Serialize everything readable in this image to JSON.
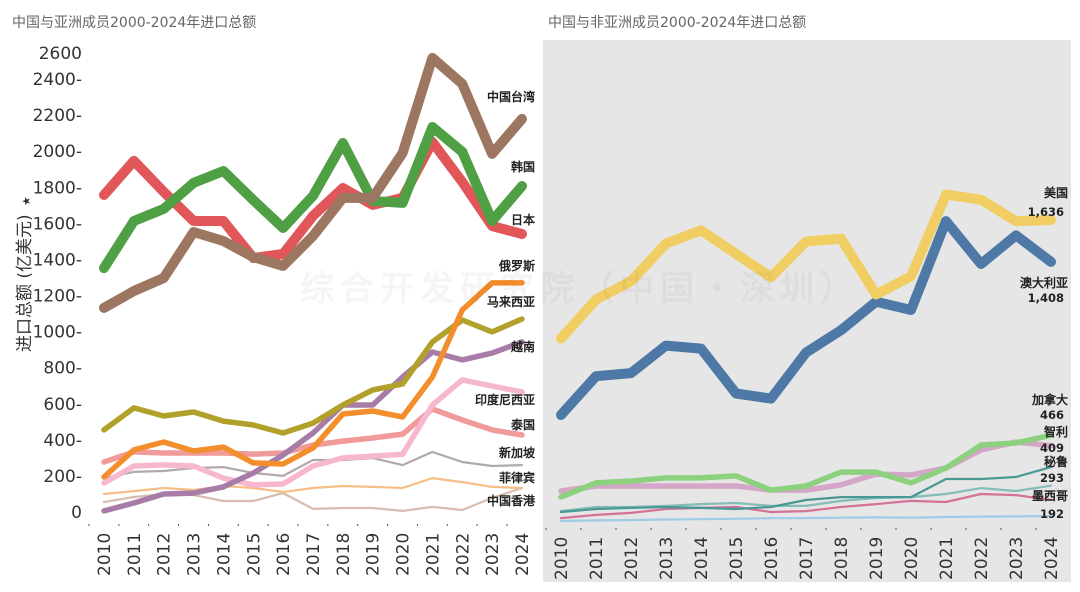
{
  "chart_data": [
    {
      "type": "line",
      "title": "中国与亚洲成员2000-2024年进口总额",
      "xlabel": "",
      "ylabel": "进口总额 (亿美元)",
      "ylabel_marker": "★",
      "ylim": [
        0,
        2600
      ],
      "yticks": [
        "0",
        "200",
        "400",
        "600",
        "800",
        "1000",
        "1200",
        "1400",
        "1600",
        "1800",
        "2000",
        "2200",
        "2400",
        "2600"
      ],
      "yticks_values": [
        0,
        200,
        400,
        600,
        800,
        1000,
        1200,
        1400,
        1600,
        1800,
        2000,
        2200,
        2400,
        2600
      ],
      "x": [
        "2010",
        "2011",
        "2012",
        "2013",
        "2014",
        "2015",
        "2016",
        "2017",
        "2018",
        "2019",
        "2020",
        "2021",
        "2022",
        "2023",
        "2024"
      ],
      "grid": false,
      "series": [
        {
          "name": "中国台湾",
          "color": "#9c7660",
          "width": "thick",
          "values": [
            1131,
            1225,
            1297,
            1552,
            1502,
            1413,
            1364,
            1530,
            1741,
            1741,
            1990,
            2517,
            2373,
            1985,
            2179
          ]
        },
        {
          "name": "韩国",
          "color": "#4fa044",
          "width": "thick",
          "values": [
            1352,
            1613,
            1680,
            1824,
            1890,
            1729,
            1574,
            1752,
            2045,
            1724,
            1713,
            2134,
            1996,
            1613,
            1807
          ]
        },
        {
          "name": "日本",
          "color": "#e15759",
          "width": "thick",
          "values": [
            1757,
            1946,
            1775,
            1613,
            1613,
            1408,
            1430,
            1641,
            1796,
            1702,
            1741,
            2051,
            1829,
            1585,
            1541
          ]
        },
        {
          "name": "俄罗斯",
          "color": "#f28e2b",
          "width": "medium",
          "values": [
            194,
            344,
            388,
            338,
            360,
            272,
            266,
            355,
            543,
            560,
            527,
            748,
            1120,
            1270,
            1270
          ]
        },
        {
          "name": "马来西亚",
          "color": "#b1a02a",
          "width": "medium",
          "values": [
            455,
            577,
            532,
            554,
            504,
            482,
            438,
            493,
            593,
            676,
            710,
            942,
            1064,
            998,
            1070
          ]
        },
        {
          "name": "越南",
          "color": "#a77ca6",
          "width": "medium",
          "values": [
            6,
            50,
            100,
            105,
            139,
            216,
            316,
            438,
            593,
            593,
            748,
            887,
            843,
            881,
            942
          ]
        },
        {
          "name": "印度尼西亚",
          "color": "#f7b8cd",
          "width": "medium",
          "values": [
            161,
            255,
            261,
            255,
            188,
            150,
            155,
            255,
            300,
            310,
            320,
            593,
            732,
            698,
            665
          ]
        },
        {
          "name": "泰国",
          "color": "#f09a9a",
          "width": "medium",
          "values": [
            277,
            333,
            327,
            327,
            327,
            321,
            327,
            371,
            393,
            410,
            432,
            571,
            510,
            455,
            427
          ]
        },
        {
          "name": "新加坡",
          "color": "#b0aaa8",
          "width": "thin",
          "values": [
            188,
            222,
            227,
            244,
            249,
            216,
            200,
            288,
            288,
            299,
            260,
            333,
            277,
            255,
            260
          ]
        },
        {
          "name": "菲律宾",
          "color": "#f5be85",
          "width": "thin",
          "values": [
            100,
            116,
            133,
            122,
            144,
            133,
            111,
            133,
            144,
            139,
            133,
            188,
            166,
            139,
            133
          ]
        },
        {
          "name": "中国香港",
          "color": "#d8bcb0",
          "width": "thin",
          "values": [
            55,
            83,
            100,
            94,
            61,
            61,
            105,
            17,
            22,
            22,
            6,
            28,
            11,
            78,
            133
          ]
        }
      ]
    },
    {
      "type": "line",
      "title": "中国与非亚洲成员2000-2024年进口总额",
      "xlabel": "",
      "ylabel": "",
      "ylim": [
        0,
        2600
      ],
      "x": [
        "2010",
        "2011",
        "2012",
        "2013",
        "2014",
        "2015",
        "2016",
        "2017",
        "2018",
        "2019",
        "2020",
        "2021",
        "2022",
        "2023",
        "2024"
      ],
      "grid": false,
      "series": [
        {
          "name": "美国",
          "end_label": "1,636",
          "color": "#f1ce63",
          "width": "thick",
          "values": [
            992,
            1203,
            1303,
            1508,
            1580,
            1452,
            1325,
            1519,
            1535,
            1231,
            1330,
            1774,
            1746,
            1630,
            1636
          ]
        },
        {
          "name": "澳大利亚",
          "end_label": "1,408",
          "color": "#4e79a7",
          "width": "thick",
          "values": [
            576,
            787,
            804,
            953,
            937,
            693,
            665,
            915,
            1037,
            1192,
            1147,
            1630,
            1397,
            1552,
            1408
          ]
        },
        {
          "name": "加拿大",
          "end_label": "466",
          "color": "#8cd17d",
          "width": "medium",
          "values": [
            130,
            207,
            217,
            234,
            234,
            245,
            168,
            190,
            266,
            266,
            207,
            288,
            413,
            424,
            466
          ]
        },
        {
          "name": "智利",
          "end_label": "409",
          "color": "#d4a6c8",
          "width": "medium",
          "values": [
            163,
            190,
            190,
            190,
            190,
            190,
            168,
            168,
            196,
            255,
            250,
            288,
            386,
            429,
            409
          ]
        },
        {
          "name": "秘鲁",
          "end_label": "293",
          "color": "#499894",
          "width": "thin",
          "values": [
            49,
            65,
            71,
            76,
            71,
            65,
            76,
            114,
            130,
            130,
            130,
            228,
            228,
            239,
            293
          ]
        },
        {
          "name": "墨西哥",
          "end_label": "192",
          "color": "#86bcb6",
          "width": "thin",
          "values": [
            54,
            76,
            76,
            82,
            92,
            98,
            82,
            82,
            109,
            125,
            130,
            147,
            179,
            163,
            192
          ]
        },
        {
          "name": "",
          "color": "#d37295",
          "width": "thin",
          "values": [
            16,
            33,
            44,
            65,
            71,
            76,
            49,
            54,
            76,
            92,
            109,
            103,
            147,
            141,
            114
          ]
        },
        {
          "name": "",
          "color": "#a0cbe8",
          "width": "thin",
          "values": [
            0,
            3,
            5,
            8,
            10,
            12,
            15,
            16,
            18,
            20,
            18,
            22,
            24,
            25,
            27
          ]
        }
      ]
    }
  ],
  "watermark": "综合开发研究院（中国・深圳）"
}
